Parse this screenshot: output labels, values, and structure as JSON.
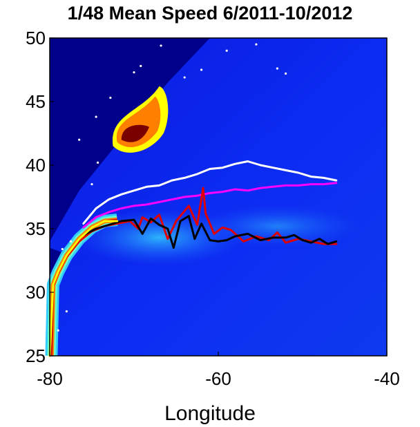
{
  "chart_data": {
    "type": "heatmap",
    "title": "1/48 Mean Speed 6/2011-10/2012",
    "xlabel": "Longitude",
    "ylabel": "",
    "xlim": [
      -80,
      -40
    ],
    "ylim": [
      25,
      50
    ],
    "xticks": [
      "-80",
      "-60",
      "-40"
    ],
    "yticks": [
      "50",
      "45",
      "40",
      "35",
      "30",
      "25"
    ],
    "colormap": [
      "#00008b",
      "#0000ff",
      "#1a66ff",
      "#33ccff",
      "#66ffcc",
      "#ffff00",
      "#ff8000",
      "#cc0000",
      "#7a0000"
    ],
    "grid": false,
    "legend": "none",
    "series": [
      {
        "color": "#ffffff",
        "x": [
          -76.0,
          -74.5,
          -73.0,
          -71.5,
          -70.0,
          -68.5,
          -67.0,
          -65.5,
          -64.0,
          -62.5,
          -61.0,
          -59.5,
          -58.0,
          -56.5,
          -55.0,
          -53.5,
          -52.0,
          -50.5,
          -49.0,
          -47.5,
          -46.0
        ],
        "y": [
          35.4,
          36.6,
          37.3,
          37.7,
          38.0,
          38.3,
          38.4,
          38.8,
          39.0,
          39.3,
          39.7,
          39.8,
          40.1,
          40.3,
          40.0,
          39.8,
          39.6,
          39.4,
          39.1,
          39.0,
          38.8
        ]
      },
      {
        "color": "#ff00ff",
        "x": [
          -76.0,
          -74.5,
          -73.0,
          -71.5,
          -70.0,
          -68.5,
          -67.0,
          -65.5,
          -64.0,
          -62.5,
          -61.0,
          -59.5,
          -58.0,
          -56.5,
          -55.0,
          -53.5,
          -52.0,
          -50.5,
          -49.0,
          -47.5,
          -46.0
        ],
        "y": [
          35.1,
          35.9,
          36.3,
          36.6,
          36.8,
          36.9,
          37.1,
          37.3,
          37.5,
          37.6,
          37.8,
          37.9,
          38.1,
          38.0,
          38.2,
          38.3,
          38.4,
          38.4,
          38.5,
          38.5,
          38.6
        ]
      },
      {
        "color": "#e00000",
        "x": [
          -80.0,
          -79.6,
          -79.0,
          -78.0,
          -76.5,
          -75.0,
          -73.5,
          -72.0,
          -70.5,
          -69.5,
          -69.0,
          -68.0,
          -67.0,
          -66.0,
          -65.0,
          -63.5,
          -62.5,
          -61.8,
          -61.5,
          -60.5,
          -59.5,
          -58.5,
          -57.0,
          -55.5,
          -54.0,
          -53.0,
          -52.0,
          -50.5,
          -49.0,
          -47.5,
          -46.0
        ],
        "y": [
          25.0,
          30.5,
          31.5,
          32.8,
          34.0,
          34.8,
          35.2,
          35.4,
          35.6,
          35.0,
          35.9,
          35.5,
          36.1,
          34.2,
          35.6,
          36.8,
          35.3,
          38.2,
          36.2,
          34.6,
          35.1,
          34.9,
          34.0,
          34.4,
          34.1,
          34.7,
          33.9,
          34.2,
          34.0,
          33.8,
          33.8
        ]
      },
      {
        "color": "#000000",
        "x": [
          -76.0,
          -74.5,
          -73.0,
          -71.5,
          -70.0,
          -69.0,
          -68.0,
          -67.0,
          -66.0,
          -65.3,
          -64.5,
          -63.5,
          -62.8,
          -62.0,
          -61.0,
          -60.0,
          -59.0,
          -58.0,
          -56.5,
          -55.0,
          -53.5,
          -52.0,
          -51.0,
          -50.0,
          -49.0,
          -48.0,
          -47.0,
          -46.0
        ],
        "y": [
          34.5,
          35.0,
          35.3,
          35.6,
          35.7,
          34.6,
          35.8,
          35.3,
          35.0,
          33.5,
          35.6,
          36.0,
          34.2,
          35.4,
          34.1,
          34.0,
          34.1,
          34.4,
          34.6,
          34.1,
          34.3,
          34.3,
          34.5,
          34.1,
          33.9,
          34.2,
          33.8,
          34.0
        ]
      },
      {
        "color": "#ffff00",
        "x": [
          -80.0,
          -79.6,
          -79.0,
          -78.0,
          -76.5,
          -75.0,
          -73.5,
          -72.0
        ],
        "y": [
          25.0,
          30.6,
          31.6,
          32.9,
          34.2,
          35.1,
          35.6,
          35.6
        ]
      }
    ]
  }
}
